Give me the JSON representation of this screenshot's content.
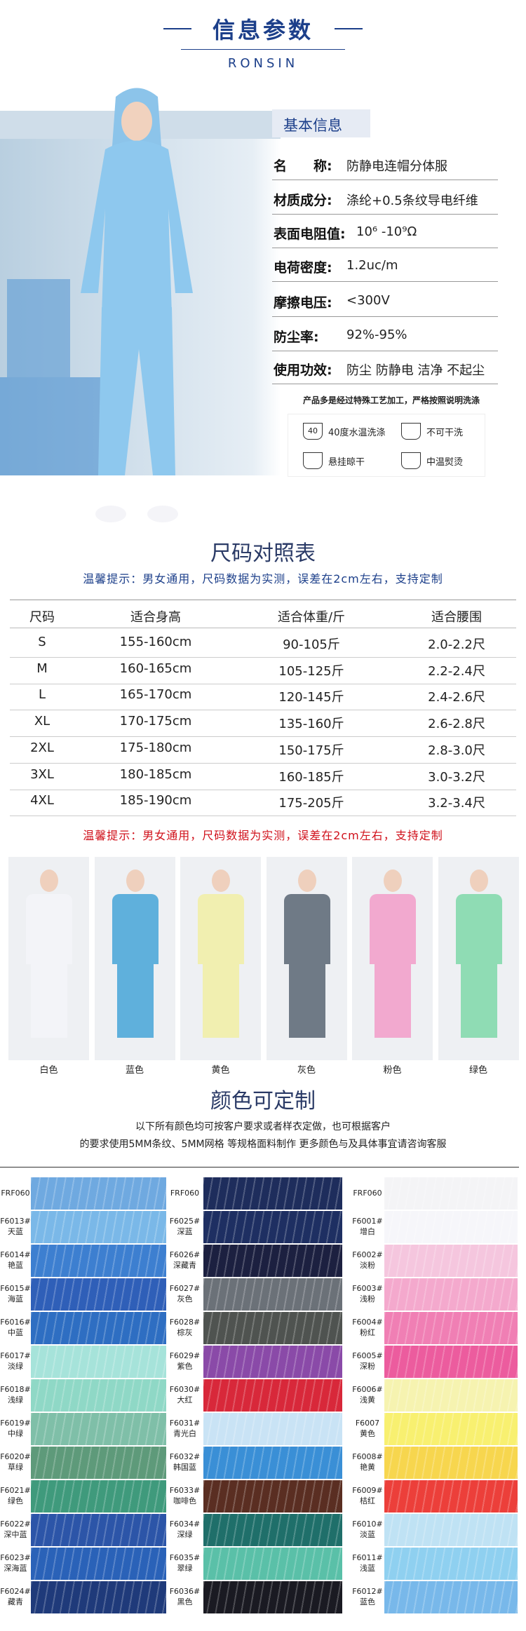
{
  "header": {
    "title": "信息参数",
    "subtitle": "RONSIN"
  },
  "basic_info": {
    "heading": "基本信息",
    "rows": [
      {
        "label": "名　　称:",
        "value": "防静电连帽分体服"
      },
      {
        "label": "材质成分:",
        "value": "涤纶+0.5条纹导电纤维"
      },
      {
        "label": "表面电阻值:",
        "value": "10⁶ -10⁹Ω"
      },
      {
        "label": "电荷密度:",
        "value": "1.2uc/m"
      },
      {
        "label": "摩擦电压:",
        "value": "<300V"
      },
      {
        "label": "防尘率:",
        "value": "92%-95%"
      },
      {
        "label": "使用功效:",
        "value": "防尘 防静电 洁净 不起尘"
      }
    ],
    "note": "产品多是经过特殊工艺加工，严格按照说明洗涤",
    "care": [
      {
        "icon": "40",
        "text": "40度水温洗涤"
      },
      {
        "text": "不可干洗"
      },
      {
        "text": "悬挂晾干"
      },
      {
        "text": "中温熨烫"
      }
    ]
  },
  "size_chart": {
    "title": "尺码对照表",
    "tip": "温馨提示：男女通用，尺码数据为实测，误差在2cm左右，支持定制",
    "columns": [
      "尺码",
      "适合身高",
      "适合体重/斤",
      "适合腰围"
    ],
    "rows": [
      [
        "S",
        "155-160cm",
        "90-105斤",
        "2.0-2.2尺"
      ],
      [
        "M",
        "160-165cm",
        "105-125斤",
        "2.2-2.4尺"
      ],
      [
        "L",
        "165-170cm",
        "120-145斤",
        "2.4-2.6尺"
      ],
      [
        "XL",
        "170-175cm",
        "135-160斤",
        "2.6-2.8尺"
      ],
      [
        "2XL",
        "175-180cm",
        "150-175斤",
        "2.8-3.0尺"
      ],
      [
        "3XL",
        "180-185cm",
        "160-185斤",
        "3.0-3.2尺"
      ],
      [
        "4XL",
        "185-190cm",
        "175-205斤",
        "3.2-3.4尺"
      ]
    ],
    "tip_bottom": "温馨提示：男女通用，尺码数据为实测，误差在2cm左右，支持定制"
  },
  "colors": {
    "photos": [
      {
        "label": "白色",
        "color": "#f3f4f8"
      },
      {
        "label": "蓝色",
        "color": "#5fb0dc"
      },
      {
        "label": "黄色",
        "color": "#f1efb0"
      },
      {
        "label": "灰色",
        "color": "#6f7a86"
      },
      {
        "label": "粉色",
        "color": "#f2a9cf"
      },
      {
        "label": "绿色",
        "color": "#8fdcb4"
      }
    ],
    "title": "颜色可定制",
    "description": [
      "以下所有颜色均可按客户要求或者样衣定做，也可根据客户",
      "的要求使用5MM条纹、5MM网格 等规格面料制作 更多颜色与及具体事宜请咨询客服"
    ]
  },
  "swatches": [
    {
      "header": "FRF060",
      "header_color": "#6fa9e0",
      "items": [
        {
          "code": "F6013#",
          "name": "天蓝",
          "color": "#7ab8e8"
        },
        {
          "code": "F6014#",
          "name": "艳蓝",
          "color": "#3d7fd0"
        },
        {
          "code": "F6015#",
          "name": "海蓝",
          "color": "#2f5fb8"
        },
        {
          "code": "F6016#",
          "name": "中蓝",
          "color": "#2e6ec2"
        },
        {
          "code": "F6017#",
          "name": "淡绿",
          "color": "#a6e3da"
        },
        {
          "code": "F6018#",
          "name": "浅绿",
          "color": "#8fd8c6"
        },
        {
          "code": "F6019#",
          "name": "中绿",
          "color": "#7fbfa8"
        },
        {
          "code": "F6020#",
          "name": "草绿",
          "color": "#5e9a7a"
        },
        {
          "code": "F6021#",
          "name": "绿色",
          "color": "#3f9a7c"
        },
        {
          "code": "F6022#",
          "name": "深中蓝",
          "color": "#2c55a8"
        },
        {
          "code": "F6023#",
          "name": "深海蓝",
          "color": "#2a62b8"
        },
        {
          "code": "F6024#",
          "name": "藏青",
          "color": "#1f3a7a"
        }
      ]
    },
    {
      "header": "FRF060",
      "header_color": "#1e2d5c",
      "items": [
        {
          "code": "F6025#",
          "name": "深蓝",
          "color": "#1e2f62"
        },
        {
          "code": "F6026#",
          "name": "深藏青",
          "color": "#1c2040"
        },
        {
          "code": "F6027#",
          "name": "灰色",
          "color": "#6b7178"
        },
        {
          "code": "F6028#",
          "name": "棕灰",
          "color": "#4f5350"
        },
        {
          "code": "F6029#",
          "name": "紫色",
          "color": "#8a4aa8"
        },
        {
          "code": "F6030#",
          "name": "大红",
          "color": "#d8283a"
        },
        {
          "code": "F6031#",
          "name": "青光白",
          "color": "#c9e3f5"
        },
        {
          "code": "F6032#",
          "name": "韩国蓝",
          "color": "#3a8fd6"
        },
        {
          "code": "F6033#",
          "name": "咖啡色",
          "color": "#5a2e22"
        },
        {
          "code": "F6034#",
          "name": "深绿",
          "color": "#1f6f6a"
        },
        {
          "code": "F6035#",
          "name": "翠绿",
          "color": "#5ac0a8"
        },
        {
          "code": "F6036#",
          "name": "黑色",
          "color": "#1a1a22"
        }
      ]
    },
    {
      "header": "FRF060",
      "header_color": "#f4f4f6",
      "items": [
        {
          "code": "F6001#",
          "name": "增白",
          "color": "#f6f6fa"
        },
        {
          "code": "F6002#",
          "name": "淡粉",
          "color": "#f5c6de"
        },
        {
          "code": "F6003#",
          "name": "浅粉",
          "color": "#f4a9cd"
        },
        {
          "code": "F6004#",
          "name": "粉红",
          "color": "#f07fb4"
        },
        {
          "code": "F6005#",
          "name": "深粉",
          "color": "#ec5c9e"
        },
        {
          "code": "F6006#",
          "name": "浅黄",
          "color": "#f6f3b0"
        },
        {
          "code": "F6007",
          "name": "黄色",
          "color": "#f8f070"
        },
        {
          "code": "F6008#",
          "name": "艳黄",
          "color": "#f7d64e"
        },
        {
          "code": "F6009#",
          "name": "桔红",
          "color": "#ec3f3a"
        },
        {
          "code": "F6010#",
          "name": "淡蓝",
          "color": "#bfe2f4"
        },
        {
          "code": "F6011#",
          "name": "浅蓝",
          "color": "#8fd0f0"
        },
        {
          "code": "F6012#",
          "name": "蓝色",
          "color": "#78b8ea"
        }
      ]
    }
  ]
}
